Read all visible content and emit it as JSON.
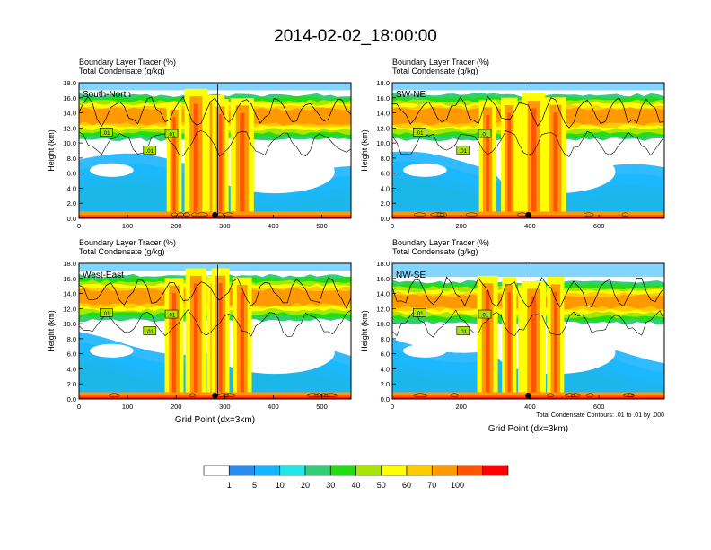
{
  "title": "2014-02-02_18:00:00",
  "colorbar": {
    "colors": [
      "#ffffff",
      "#2b8cf0",
      "#1ab3ff",
      "#22e6e6",
      "#33cc77",
      "#22dd11",
      "#a8e600",
      "#ffff00",
      "#ffcc00",
      "#ff9900",
      "#ff5500",
      "#ff0000"
    ],
    "labels": [
      "1",
      "5",
      "10",
      "20",
      "30",
      "40",
      "50",
      "60",
      "70",
      "100"
    ]
  },
  "chart_data": [
    {
      "type": "heatmap",
      "name": "panel-south-north",
      "label": "South-North",
      "caption1": "Boundary Layer Tracer   (%)",
      "caption2": "Total Condensate   (g/kg)",
      "ylabel": "Height (km)",
      "xlabel": "",
      "ylim": [
        0,
        18
      ],
      "xlim": [
        0,
        560
      ],
      "yticks": [
        "0.0",
        "2.0",
        "4.0",
        "6.0",
        "8.0",
        "10.0",
        "12.0",
        "14.0",
        "16.0",
        "18.0"
      ],
      "xticks": [
        0,
        100,
        200,
        300,
        400,
        500
      ],
      "marker_x": 280,
      "contour_label": ".01"
    },
    {
      "type": "heatmap",
      "name": "panel-sw-ne",
      "label": "SW-NE",
      "caption1": "Boundary Layer Tracer   (%)",
      "caption2": "Total Condensate   (g/kg)",
      "ylabel": "Height (km)",
      "xlabel": "",
      "ylim": [
        0,
        18
      ],
      "xlim": [
        0,
        790
      ],
      "yticks": [
        "0.0",
        "2.0",
        "4.0",
        "6.0",
        "8.0",
        "10.0",
        "12.0",
        "14.0",
        "16.0",
        "18.0"
      ],
      "xticks": [
        0,
        200,
        400,
        600
      ],
      "marker_x": 395,
      "contour_label": ".01"
    },
    {
      "type": "heatmap",
      "name": "panel-west-east",
      "label": "West-East",
      "caption1": "Boundary Layer Tracer   (%)",
      "caption2": "Total Condensate   (g/kg)",
      "ylabel": "Height (km)",
      "xlabel": "Grid Point (dx=3km)",
      "ylim": [
        0,
        18
      ],
      "xlim": [
        0,
        560
      ],
      "yticks": [
        "0.0",
        "2.0",
        "4.0",
        "6.0",
        "8.0",
        "10.0",
        "12.0",
        "14.0",
        "16.0",
        "18.0"
      ],
      "xticks": [
        0,
        100,
        200,
        300,
        400,
        500
      ],
      "marker_x": 280,
      "contour_label": ".01"
    },
    {
      "type": "heatmap",
      "name": "panel-nw-se",
      "label": "NW-SE",
      "caption1": "Boundary Layer Tracer   (%)",
      "caption2": "Total Condensate   (g/kg)",
      "ylabel": "Height (km)",
      "xlabel": "Grid Point (dx=3km)",
      "ylim": [
        0,
        18
      ],
      "xlim": [
        0,
        790
      ],
      "yticks": [
        "0.0",
        "2.0",
        "4.0",
        "6.0",
        "8.0",
        "10.0",
        "12.0",
        "14.0",
        "16.0",
        "18.0"
      ],
      "xticks": [
        0,
        200,
        400,
        600
      ],
      "marker_x": 395,
      "contour_label": ".01",
      "footnote": "Total Condensate Contours: .01 to .01 by .000"
    }
  ]
}
